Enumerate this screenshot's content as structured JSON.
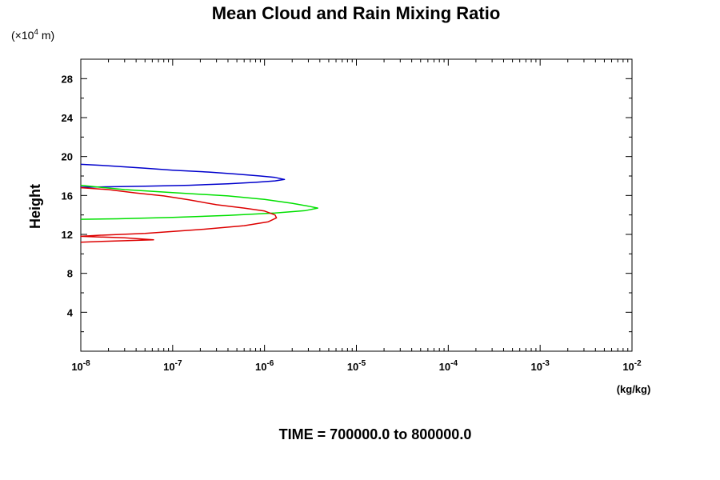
{
  "chart_data": {
    "type": "line",
    "title": "Mean Cloud and Rain Mixing Ratio",
    "y_scale_note": "(×10",
    "y_scale_exp": "4",
    "y_scale_unit": " m)",
    "ylabel": "Height",
    "xlabel": "(kg/kg)",
    "footer": "TIME = 700000.0 to 800000.0",
    "x_scale": "log",
    "xlim": [
      1e-08,
      0.01
    ],
    "ylim": [
      0,
      30
    ],
    "x_ticks": [
      {
        "value": 1e-08,
        "base": "10",
        "exp": "-8"
      },
      {
        "value": 1e-07,
        "base": "10",
        "exp": "-7"
      },
      {
        "value": 1e-06,
        "base": "10",
        "exp": "-6"
      },
      {
        "value": 1e-05,
        "base": "10",
        "exp": "-5"
      },
      {
        "value": 0.0001,
        "base": "10",
        "exp": "-4"
      },
      {
        "value": 0.001,
        "base": "10",
        "exp": "-3"
      },
      {
        "value": 0.01,
        "base": "10",
        "exp": "-2"
      }
    ],
    "y_ticks": [
      {
        "value": 4,
        "label": "4"
      },
      {
        "value": 8,
        "label": "8"
      },
      {
        "value": 12,
        "label": "12"
      },
      {
        "value": 16,
        "label": "16"
      },
      {
        "value": 20,
        "label": "20"
      },
      {
        "value": 24,
        "label": "24"
      },
      {
        "value": 28,
        "label": "28"
      }
    ],
    "grid": false,
    "series": [
      {
        "color": "#0000cc",
        "points": [
          [
            1e-08,
            19.2
          ],
          [
            2e-08,
            19.05
          ],
          [
            5e-08,
            18.8
          ],
          [
            1e-07,
            18.6
          ],
          [
            2.5e-07,
            18.4
          ],
          [
            5e-07,
            18.2
          ],
          [
            9e-07,
            18.0
          ],
          [
            1.3e-06,
            17.85
          ],
          [
            1.65e-06,
            17.65
          ],
          [
            1.3e-06,
            17.5
          ],
          [
            8e-07,
            17.35
          ],
          [
            4e-07,
            17.2
          ],
          [
            1.5e-07,
            17.05
          ],
          [
            5e-08,
            16.95
          ],
          [
            1e-08,
            16.85
          ]
        ]
      },
      {
        "color": "#00e000",
        "points": [
          [
            1e-08,
            17.05
          ],
          [
            1.6e-08,
            16.85
          ],
          [
            3e-08,
            16.6
          ],
          [
            1e-07,
            16.3
          ],
          [
            4e-07,
            15.95
          ],
          [
            1e-06,
            15.6
          ],
          [
            2e-06,
            15.2
          ],
          [
            3e-06,
            14.9
          ],
          [
            3.8e-06,
            14.7
          ],
          [
            2.8e-06,
            14.45
          ],
          [
            1.3e-06,
            14.2
          ],
          [
            4e-07,
            13.95
          ],
          [
            1e-07,
            13.75
          ],
          [
            2.5e-08,
            13.6
          ],
          [
            1e-08,
            13.55
          ]
        ]
      },
      {
        "color": "#dd0000",
        "points": [
          [
            1e-08,
            16.8
          ],
          [
            2e-08,
            16.6
          ],
          [
            4e-08,
            16.25
          ],
          [
            8e-08,
            15.95
          ],
          [
            1.5e-07,
            15.55
          ],
          [
            3e-07,
            15.05
          ],
          [
            6e-07,
            14.7
          ],
          [
            1e-06,
            14.4
          ],
          [
            1.3e-06,
            14.0
          ],
          [
            1.35e-06,
            13.7
          ],
          [
            1.1e-06,
            13.3
          ],
          [
            6e-07,
            12.9
          ],
          [
            2e-07,
            12.5
          ],
          [
            5e-08,
            12.1
          ],
          [
            1.5e-08,
            11.9
          ],
          [
            1e-08,
            11.8
          ],
          [
            3e-08,
            11.65
          ],
          [
            6.2e-08,
            11.45
          ],
          [
            2e-08,
            11.3
          ],
          [
            1e-08,
            11.2
          ]
        ]
      }
    ]
  }
}
